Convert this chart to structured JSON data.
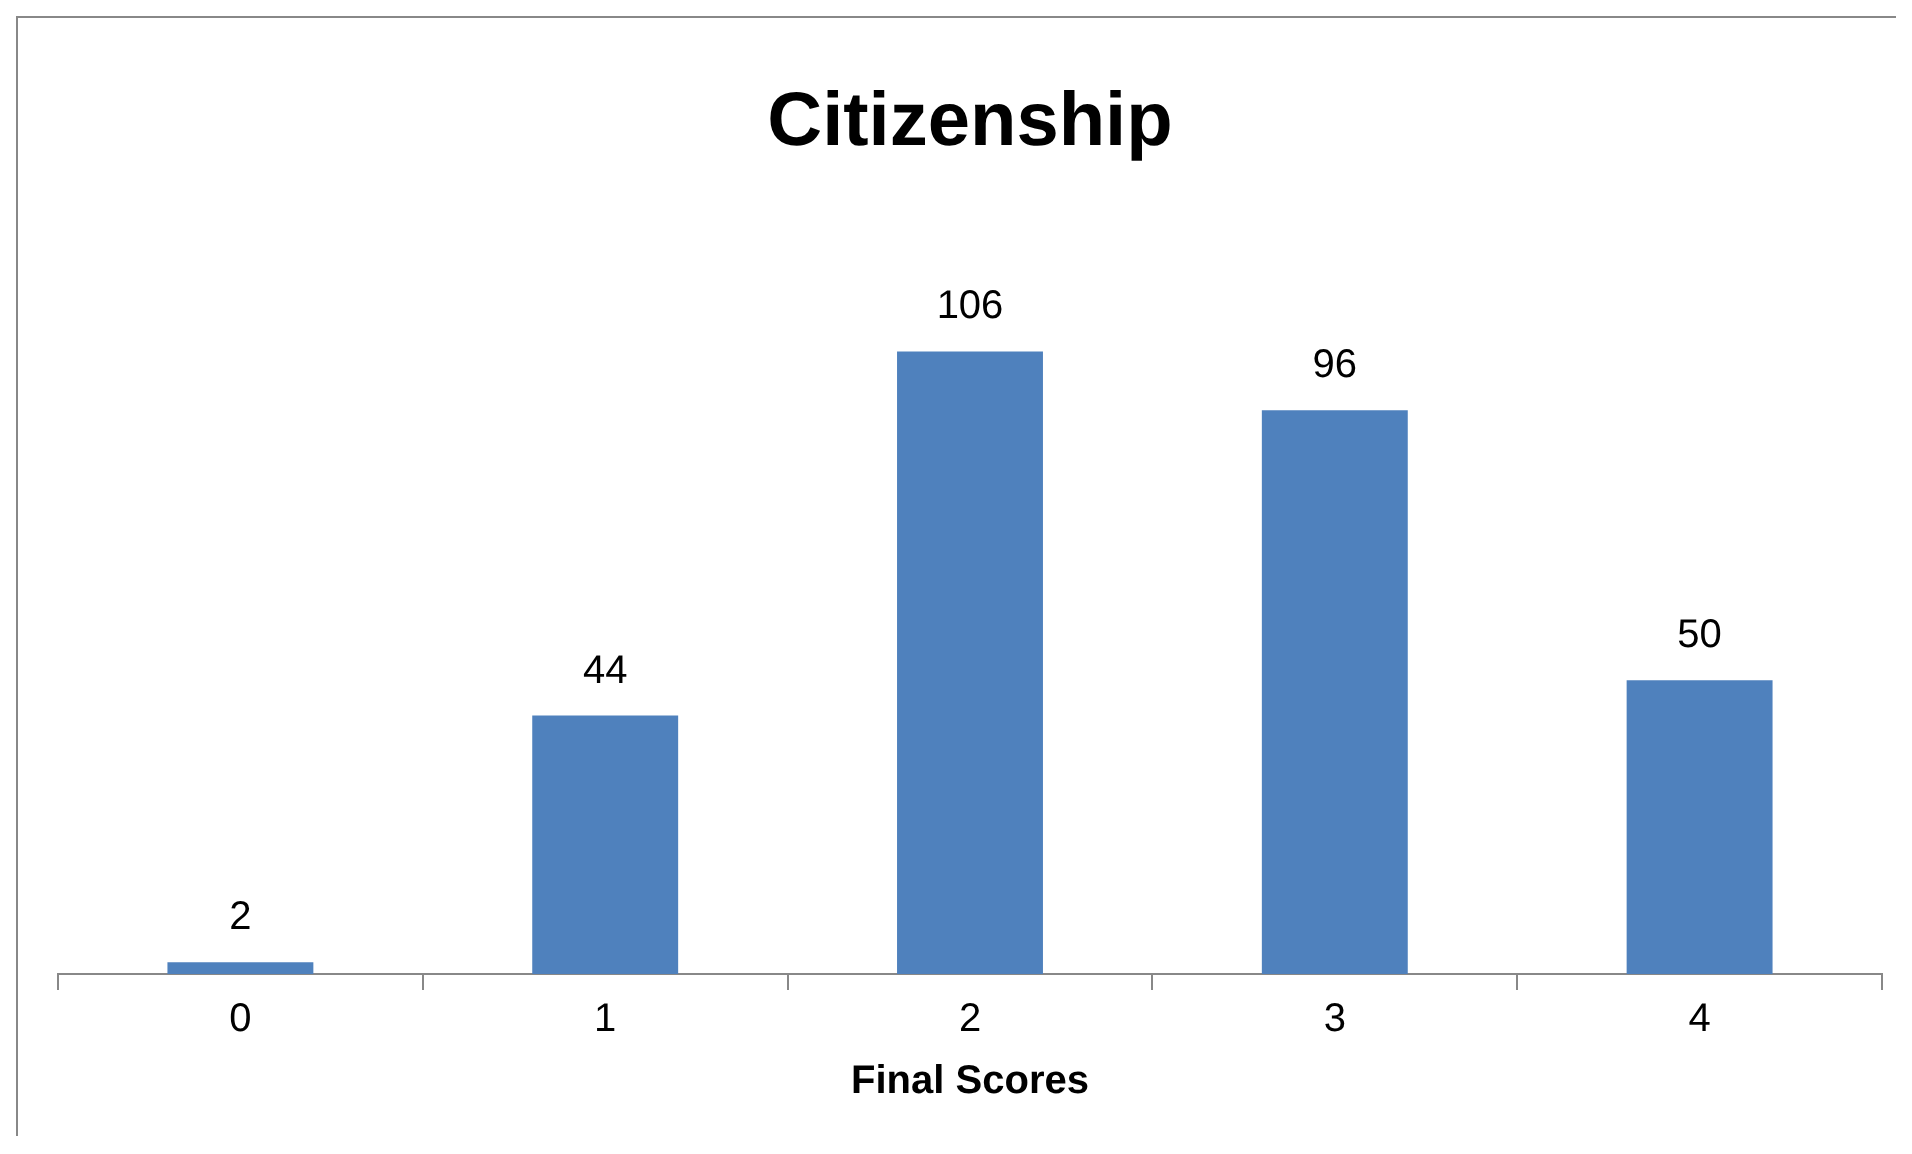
{
  "chart_data": {
    "type": "bar",
    "title": "Citizenship",
    "xlabel": "Final Scores",
    "categories": [
      "0",
      "1",
      "2",
      "3",
      "4"
    ],
    "values": [
      2,
      44,
      106,
      96,
      50
    ],
    "color": "#4f81bd",
    "data_labels": true,
    "grid": false,
    "legend": false
  }
}
